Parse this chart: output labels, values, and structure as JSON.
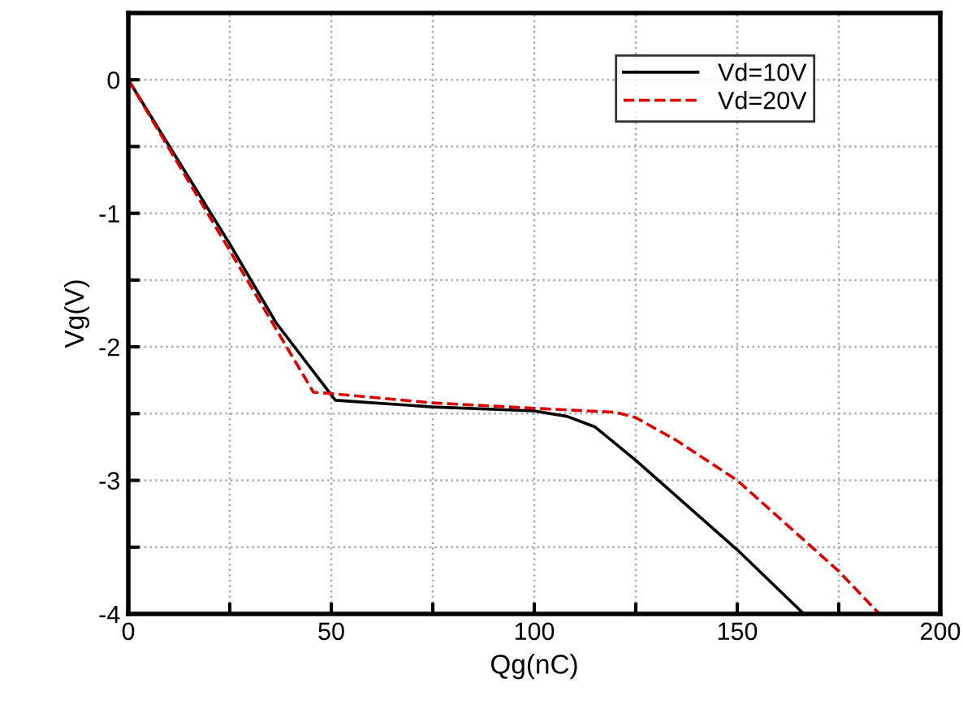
{
  "chart_data": {
    "type": "line",
    "xlabel": "Qg(nC)",
    "ylabel": "Vg(V)",
    "xlim": [
      0,
      200
    ],
    "ylim": [
      -4,
      0.5
    ],
    "xticks": [
      0,
      {
        "value": 25,
        "label": null
      },
      50,
      {
        "value": 75,
        "label": null
      },
      100,
      {
        "value": 125,
        "label": null
      },
      150,
      {
        "value": 175,
        "label": null
      },
      200
    ],
    "yticks": [
      -4,
      {
        "value": -3.5,
        "label": null
      },
      -3,
      {
        "value": -2.5,
        "label": null
      },
      -2,
      {
        "value": -1.5,
        "label": null
      },
      -1,
      {
        "value": -0.5,
        "label": null
      },
      0
    ],
    "grid": true,
    "legend": "top right",
    "series": [
      {
        "name": "Vd=10V",
        "color": "#000000",
        "line_style": "solid",
        "x": [
          0,
          25,
          36.4,
          51,
          75,
          100,
          108,
          115,
          125,
          150,
          166.4
        ],
        "values": [
          0,
          -1.23,
          -1.82,
          -2.4,
          -2.45,
          -2.48,
          -2.52,
          -2.6,
          -2.85,
          -3.52,
          -4
        ]
      },
      {
        "name": "Vd=20V",
        "color": "#dd0000",
        "line_style": "dashed",
        "x": [
          0,
          25,
          45.6,
          50,
          75,
          100,
          120,
          125,
          135,
          150,
          175,
          185
        ],
        "values": [
          0,
          -1.28,
          -2.34,
          -2.35,
          -2.42,
          -2.46,
          -2.49,
          -2.53,
          -2.7,
          -3.0,
          -3.68,
          -4
        ]
      }
    ]
  }
}
